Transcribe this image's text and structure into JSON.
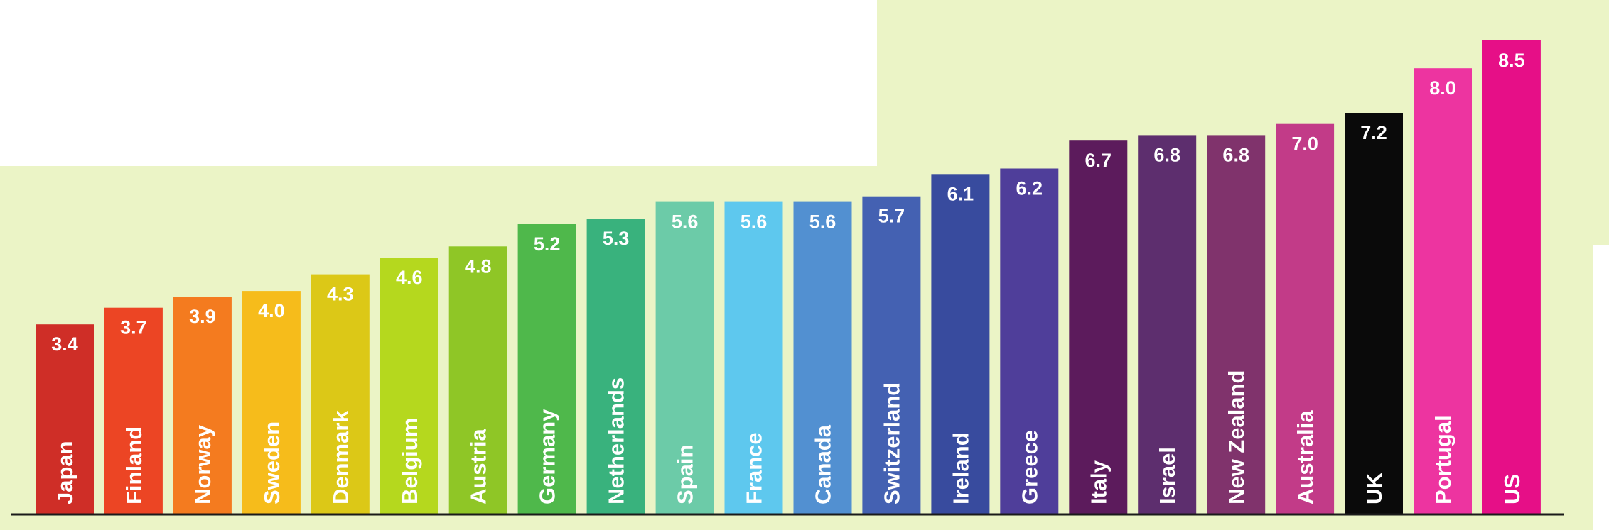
{
  "chart_data": {
    "type": "bar",
    "title": "",
    "xlabel": "",
    "ylabel": "",
    "ylim": [
      0,
      8.5
    ],
    "grid": false,
    "legend": "none",
    "categories": [
      "Japan",
      "Finland",
      "Norway",
      "Sweden",
      "Denmark",
      "Belgium",
      "Austria",
      "Germany",
      "Netherlands",
      "Spain",
      "France",
      "Canada",
      "Switzerland",
      "Ireland",
      "Greece",
      "Italy",
      "Israel",
      "New Zealand",
      "Australia",
      "UK",
      "Portugal",
      "US"
    ],
    "values": [
      3.4,
      3.7,
      3.9,
      4.0,
      4.3,
      4.6,
      4.8,
      5.2,
      5.3,
      5.6,
      5.6,
      5.6,
      5.7,
      6.1,
      6.2,
      6.7,
      6.8,
      6.8,
      7.0,
      7.2,
      8.0,
      8.5
    ],
    "value_labels": [
      "3.4",
      "3.7",
      "3.9",
      "4.0",
      "4.3",
      "4.6",
      "4.8",
      "5.2",
      "5.3",
      "5.6",
      "5.6",
      "5.6",
      "5.7",
      "6.1",
      "6.2",
      "6.7",
      "6.8",
      "6.8",
      "7.0",
      "7.2",
      "8.0",
      "8.5"
    ],
    "colors": [
      "#cf2e27",
      "#ec4524",
      "#f47b1f",
      "#f6bc1b",
      "#dcc817",
      "#b5d81e",
      "#8fc626",
      "#4fb84b",
      "#39b27d",
      "#6ccba8",
      "#5ec8ee",
      "#5290d1",
      "#4461b2",
      "#384b9e",
      "#4f3e9a",
      "#5c1b5c",
      "#5d2e6e",
      "#80336c",
      "#c23b88",
      "#0a0a0a",
      "#ed34a0",
      "#e60f87"
    ]
  },
  "colors": {
    "background": "#ebf4c6",
    "panel": "#ffffff",
    "baseline": "#1a1a1a",
    "label_text": "#ffffff"
  }
}
